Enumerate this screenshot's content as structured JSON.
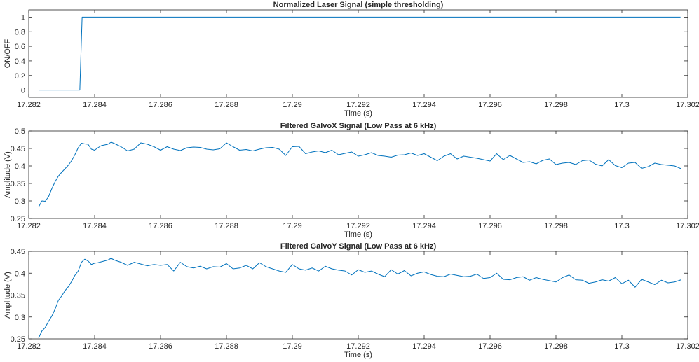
{
  "chart_data": [
    {
      "type": "line",
      "title": "Normalized Laser Signal (simple thresholding)",
      "xlabel": "Time (s)",
      "ylabel": "ON/OFF",
      "xlim": [
        17.282,
        17.302
      ],
      "ylim": [
        -0.1,
        1.1
      ],
      "xticks": [
        17.282,
        17.284,
        17.286,
        17.288,
        17.29,
        17.292,
        17.294,
        17.296,
        17.298,
        17.3,
        17.302
      ],
      "xtick_labels": [
        "17.282",
        "17.284",
        "17.286",
        "17.288",
        "17.29",
        "17.292",
        "17.294",
        "17.296",
        "17.298",
        "17.3",
        "17.302"
      ],
      "yticks": [
        0,
        0.2,
        0.4,
        0.6,
        0.8,
        1
      ],
      "ytick_labels": [
        "0",
        "0.2",
        "0.4",
        "0.6",
        "0.8",
        "1"
      ],
      "color": "#0072BD",
      "grid": false,
      "series": [
        {
          "x": [
            17.2823,
            17.28355,
            17.28362,
            17.28366,
            17.30178
          ],
          "y": [
            0,
            0,
            1,
            1,
            1
          ]
        }
      ]
    },
    {
      "type": "line",
      "title": "Filtered GalvoX Signal (Low Pass at 6 kHz)",
      "xlabel": "Time (s)",
      "ylabel": "Amplitude (V)",
      "xlim": [
        17.282,
        17.302
      ],
      "ylim": [
        0.25,
        0.5
      ],
      "xticks": [
        17.282,
        17.284,
        17.286,
        17.288,
        17.29,
        17.292,
        17.294,
        17.296,
        17.298,
        17.3,
        17.302
      ],
      "xtick_labels": [
        "17.282",
        "17.284",
        "17.286",
        "17.288",
        "17.29",
        "17.292",
        "17.294",
        "17.296",
        "17.298",
        "17.3",
        "17.302"
      ],
      "yticks": [
        0.25,
        0.3,
        0.35,
        0.4,
        0.45,
        0.5
      ],
      "ytick_labels": [
        "0.25",
        "0.3",
        "0.35",
        "0.4",
        "0.45",
        "0.5"
      ],
      "color": "#0072BD",
      "grid": false,
      "series": [
        {
          "x": [
            17.2823,
            17.2824,
            17.2825,
            17.2826,
            17.2827,
            17.2828,
            17.2829,
            17.283,
            17.2831,
            17.2832,
            17.2833,
            17.2834,
            17.2835,
            17.2836,
            17.2837,
            17.2838,
            17.2839,
            17.284,
            17.2841,
            17.2842,
            17.2843,
            17.2844,
            17.2845,
            17.2846,
            17.2848,
            17.285,
            17.2852,
            17.2854,
            17.2856,
            17.2858,
            17.286,
            17.2862,
            17.2864,
            17.2866,
            17.2868,
            17.287,
            17.2872,
            17.2874,
            17.2876,
            17.2878,
            17.288,
            17.2882,
            17.2884,
            17.2886,
            17.2888,
            17.289,
            17.2892,
            17.2894,
            17.2896,
            17.2898,
            17.29,
            17.2902,
            17.2904,
            17.2906,
            17.2908,
            17.291,
            17.2912,
            17.2914,
            17.2916,
            17.2918,
            17.292,
            17.2922,
            17.2924,
            17.2926,
            17.2928,
            17.293,
            17.2932,
            17.2934,
            17.2936,
            17.2938,
            17.294,
            17.2942,
            17.2944,
            17.2946,
            17.2948,
            17.295,
            17.2952,
            17.2954,
            17.2956,
            17.2958,
            17.296,
            17.2962,
            17.2964,
            17.2966,
            17.2968,
            17.297,
            17.2972,
            17.2974,
            17.2976,
            17.2978,
            17.298,
            17.2982,
            17.2984,
            17.2986,
            17.2988,
            17.299,
            17.2992,
            17.2994,
            17.2996,
            17.2998,
            17.3,
            17.3002,
            17.3004,
            17.3006,
            17.3008,
            17.301,
            17.3012,
            17.3014,
            17.3016,
            17.3018
          ],
          "y": [
            0.283,
            0.3,
            0.299,
            0.312,
            0.335,
            0.355,
            0.371,
            0.382,
            0.392,
            0.402,
            0.415,
            0.432,
            0.452,
            0.465,
            0.463,
            0.462,
            0.448,
            0.445,
            0.452,
            0.458,
            0.46,
            0.462,
            0.468,
            0.464,
            0.455,
            0.443,
            0.448,
            0.466,
            0.462,
            0.455,
            0.445,
            0.455,
            0.448,
            0.444,
            0.452,
            0.454,
            0.453,
            0.448,
            0.446,
            0.449,
            0.466,
            0.455,
            0.445,
            0.447,
            0.443,
            0.448,
            0.452,
            0.453,
            0.448,
            0.43,
            0.455,
            0.456,
            0.435,
            0.44,
            0.443,
            0.438,
            0.445,
            0.432,
            0.436,
            0.44,
            0.428,
            0.432,
            0.438,
            0.43,
            0.428,
            0.425,
            0.431,
            0.432,
            0.437,
            0.43,
            0.435,
            0.425,
            0.415,
            0.428,
            0.435,
            0.42,
            0.428,
            0.425,
            0.422,
            0.418,
            0.414,
            0.435,
            0.418,
            0.43,
            0.42,
            0.41,
            0.412,
            0.406,
            0.416,
            0.42,
            0.404,
            0.408,
            0.41,
            0.404,
            0.415,
            0.417,
            0.405,
            0.4,
            0.418,
            0.401,
            0.395,
            0.408,
            0.41,
            0.393,
            0.398,
            0.408,
            0.404,
            0.402,
            0.4,
            0.392
          ]
        }
      ]
    },
    {
      "type": "line",
      "title": "Filtered GalvoY Signal (Low Pass at 6 kHz)",
      "xlabel": "Time (s)",
      "ylabel": "Amplitude (V)",
      "xlim": [
        17.282,
        17.302
      ],
      "ylim": [
        0.25,
        0.45
      ],
      "xticks": [
        17.282,
        17.284,
        17.286,
        17.288,
        17.29,
        17.292,
        17.294,
        17.296,
        17.298,
        17.3,
        17.302
      ],
      "xtick_labels": [
        "17.282",
        "17.284",
        "17.286",
        "17.288",
        "17.29",
        "17.292",
        "17.294",
        "17.296",
        "17.298",
        "17.3",
        "17.302"
      ],
      "yticks": [
        0.25,
        0.3,
        0.35,
        0.4,
        0.45
      ],
      "ytick_labels": [
        "0.25",
        "0.3",
        "0.35",
        "0.4",
        "0.45"
      ],
      "color": "#0072BD",
      "grid": false,
      "series": [
        {
          "x": [
            17.2823,
            17.2824,
            17.2825,
            17.2826,
            17.2827,
            17.2828,
            17.2829,
            17.283,
            17.2831,
            17.2832,
            17.2833,
            17.2834,
            17.2835,
            17.2836,
            17.2837,
            17.2838,
            17.2839,
            17.284,
            17.2841,
            17.2842,
            17.2843,
            17.2844,
            17.2845,
            17.2846,
            17.2848,
            17.285,
            17.2852,
            17.2854,
            17.2856,
            17.2858,
            17.286,
            17.2862,
            17.2864,
            17.2866,
            17.2868,
            17.287,
            17.2872,
            17.2874,
            17.2876,
            17.2878,
            17.288,
            17.2882,
            17.2884,
            17.2886,
            17.2888,
            17.289,
            17.2892,
            17.2894,
            17.2896,
            17.2898,
            17.29,
            17.2902,
            17.2904,
            17.2906,
            17.2908,
            17.291,
            17.2912,
            17.2914,
            17.2916,
            17.2918,
            17.292,
            17.2922,
            17.2924,
            17.2926,
            17.2928,
            17.293,
            17.2932,
            17.2934,
            17.2936,
            17.2938,
            17.294,
            17.2942,
            17.2944,
            17.2946,
            17.2948,
            17.295,
            17.2952,
            17.2954,
            17.2956,
            17.2958,
            17.296,
            17.2962,
            17.2964,
            17.2966,
            17.2968,
            17.297,
            17.2972,
            17.2974,
            17.2976,
            17.2978,
            17.298,
            17.2982,
            17.2984,
            17.2986,
            17.2988,
            17.299,
            17.2992,
            17.2994,
            17.2996,
            17.2998,
            17.3,
            17.3002,
            17.3004,
            17.3006,
            17.3008,
            17.301,
            17.3012,
            17.3014,
            17.3016,
            17.3018
          ],
          "y": [
            0.252,
            0.268,
            0.276,
            0.29,
            0.302,
            0.318,
            0.338,
            0.348,
            0.36,
            0.369,
            0.381,
            0.395,
            0.405,
            0.425,
            0.432,
            0.428,
            0.42,
            0.423,
            0.424,
            0.426,
            0.428,
            0.43,
            0.434,
            0.43,
            0.425,
            0.418,
            0.425,
            0.421,
            0.417,
            0.42,
            0.418,
            0.42,
            0.405,
            0.425,
            0.415,
            0.412,
            0.416,
            0.41,
            0.415,
            0.414,
            0.422,
            0.41,
            0.412,
            0.418,
            0.41,
            0.424,
            0.415,
            0.41,
            0.405,
            0.402,
            0.42,
            0.41,
            0.407,
            0.412,
            0.405,
            0.416,
            0.41,
            0.407,
            0.405,
            0.396,
            0.408,
            0.402,
            0.405,
            0.398,
            0.392,
            0.408,
            0.398,
            0.406,
            0.394,
            0.4,
            0.403,
            0.397,
            0.393,
            0.392,
            0.398,
            0.395,
            0.392,
            0.393,
            0.398,
            0.388,
            0.39,
            0.4,
            0.386,
            0.385,
            0.39,
            0.392,
            0.384,
            0.39,
            0.386,
            0.383,
            0.38,
            0.39,
            0.396,
            0.385,
            0.384,
            0.377,
            0.38,
            0.385,
            0.382,
            0.39,
            0.376,
            0.384,
            0.368,
            0.386,
            0.38,
            0.374,
            0.384,
            0.378,
            0.38,
            0.385
          ]
        }
      ]
    }
  ]
}
